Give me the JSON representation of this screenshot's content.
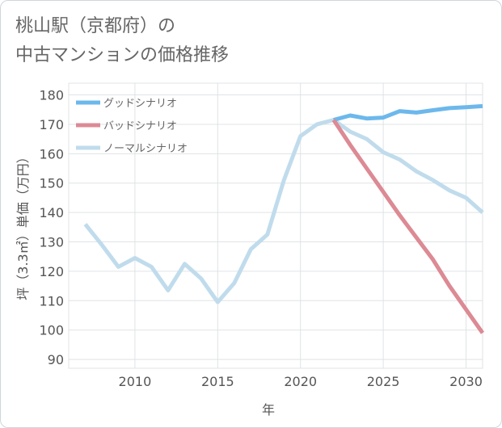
{
  "title": {
    "line1": "桃山駅（京都府）の",
    "line2": "中古マンションの価格推移"
  },
  "chart_data": {
    "type": "line",
    "title": "桃山駅（京都府）の中古マンションの価格推移",
    "xlabel": "年",
    "ylabel": "坪（3.3㎡）単価（万円）",
    "xlim": [
      2006,
      2031
    ],
    "ylim": [
      87,
      184
    ],
    "xticks": [
      2010,
      2015,
      2020,
      2025,
      2030
    ],
    "yticks": [
      90,
      100,
      110,
      120,
      130,
      140,
      150,
      160,
      170,
      180
    ],
    "legend_position": "top-left",
    "series": [
      {
        "name": "ノーマルシナリオ",
        "color": "#c0dcec",
        "x": [
          2007,
          2008,
          2009,
          2010,
          2011,
          2012,
          2013,
          2014,
          2015,
          2016,
          2017,
          2018,
          2019,
          2020,
          2021,
          2022,
          2023,
          2024,
          2025,
          2026,
          2027,
          2028,
          2029,
          2030,
          2031
        ],
        "values": [
          136,
          129,
          121.5,
          124.5,
          121.5,
          113.5,
          122.5,
          117.5,
          109.5,
          116,
          127.5,
          132.5,
          151,
          166,
          170,
          171.5,
          167.5,
          165,
          160.5,
          158,
          154,
          151,
          147.5,
          145,
          140
        ]
      },
      {
        "name": "グッドシナリオ",
        "color": "#6cb8ec",
        "x": [
          2022,
          2023,
          2024,
          2025,
          2026,
          2027,
          2028,
          2029,
          2030,
          2031
        ],
        "values": [
          171.5,
          173,
          172,
          172.3,
          174.5,
          174,
          174.8,
          175.5,
          175.8,
          176.2
        ]
      },
      {
        "name": "バッドシナリオ",
        "color": "#dc8a94",
        "x": [
          2022,
          2023,
          2024,
          2025,
          2026,
          2027,
          2028,
          2029,
          2030,
          2031
        ],
        "values": [
          171.5,
          163,
          155,
          147,
          139,
          131.5,
          124,
          115,
          107,
          99
        ]
      }
    ],
    "legend": [
      {
        "name": "グッドシナリオ",
        "color": "#6cb8ec"
      },
      {
        "name": "バッドシナリオ",
        "color": "#dc8a94"
      },
      {
        "name": "ノーマルシナリオ",
        "color": "#c0dcec"
      }
    ]
  }
}
